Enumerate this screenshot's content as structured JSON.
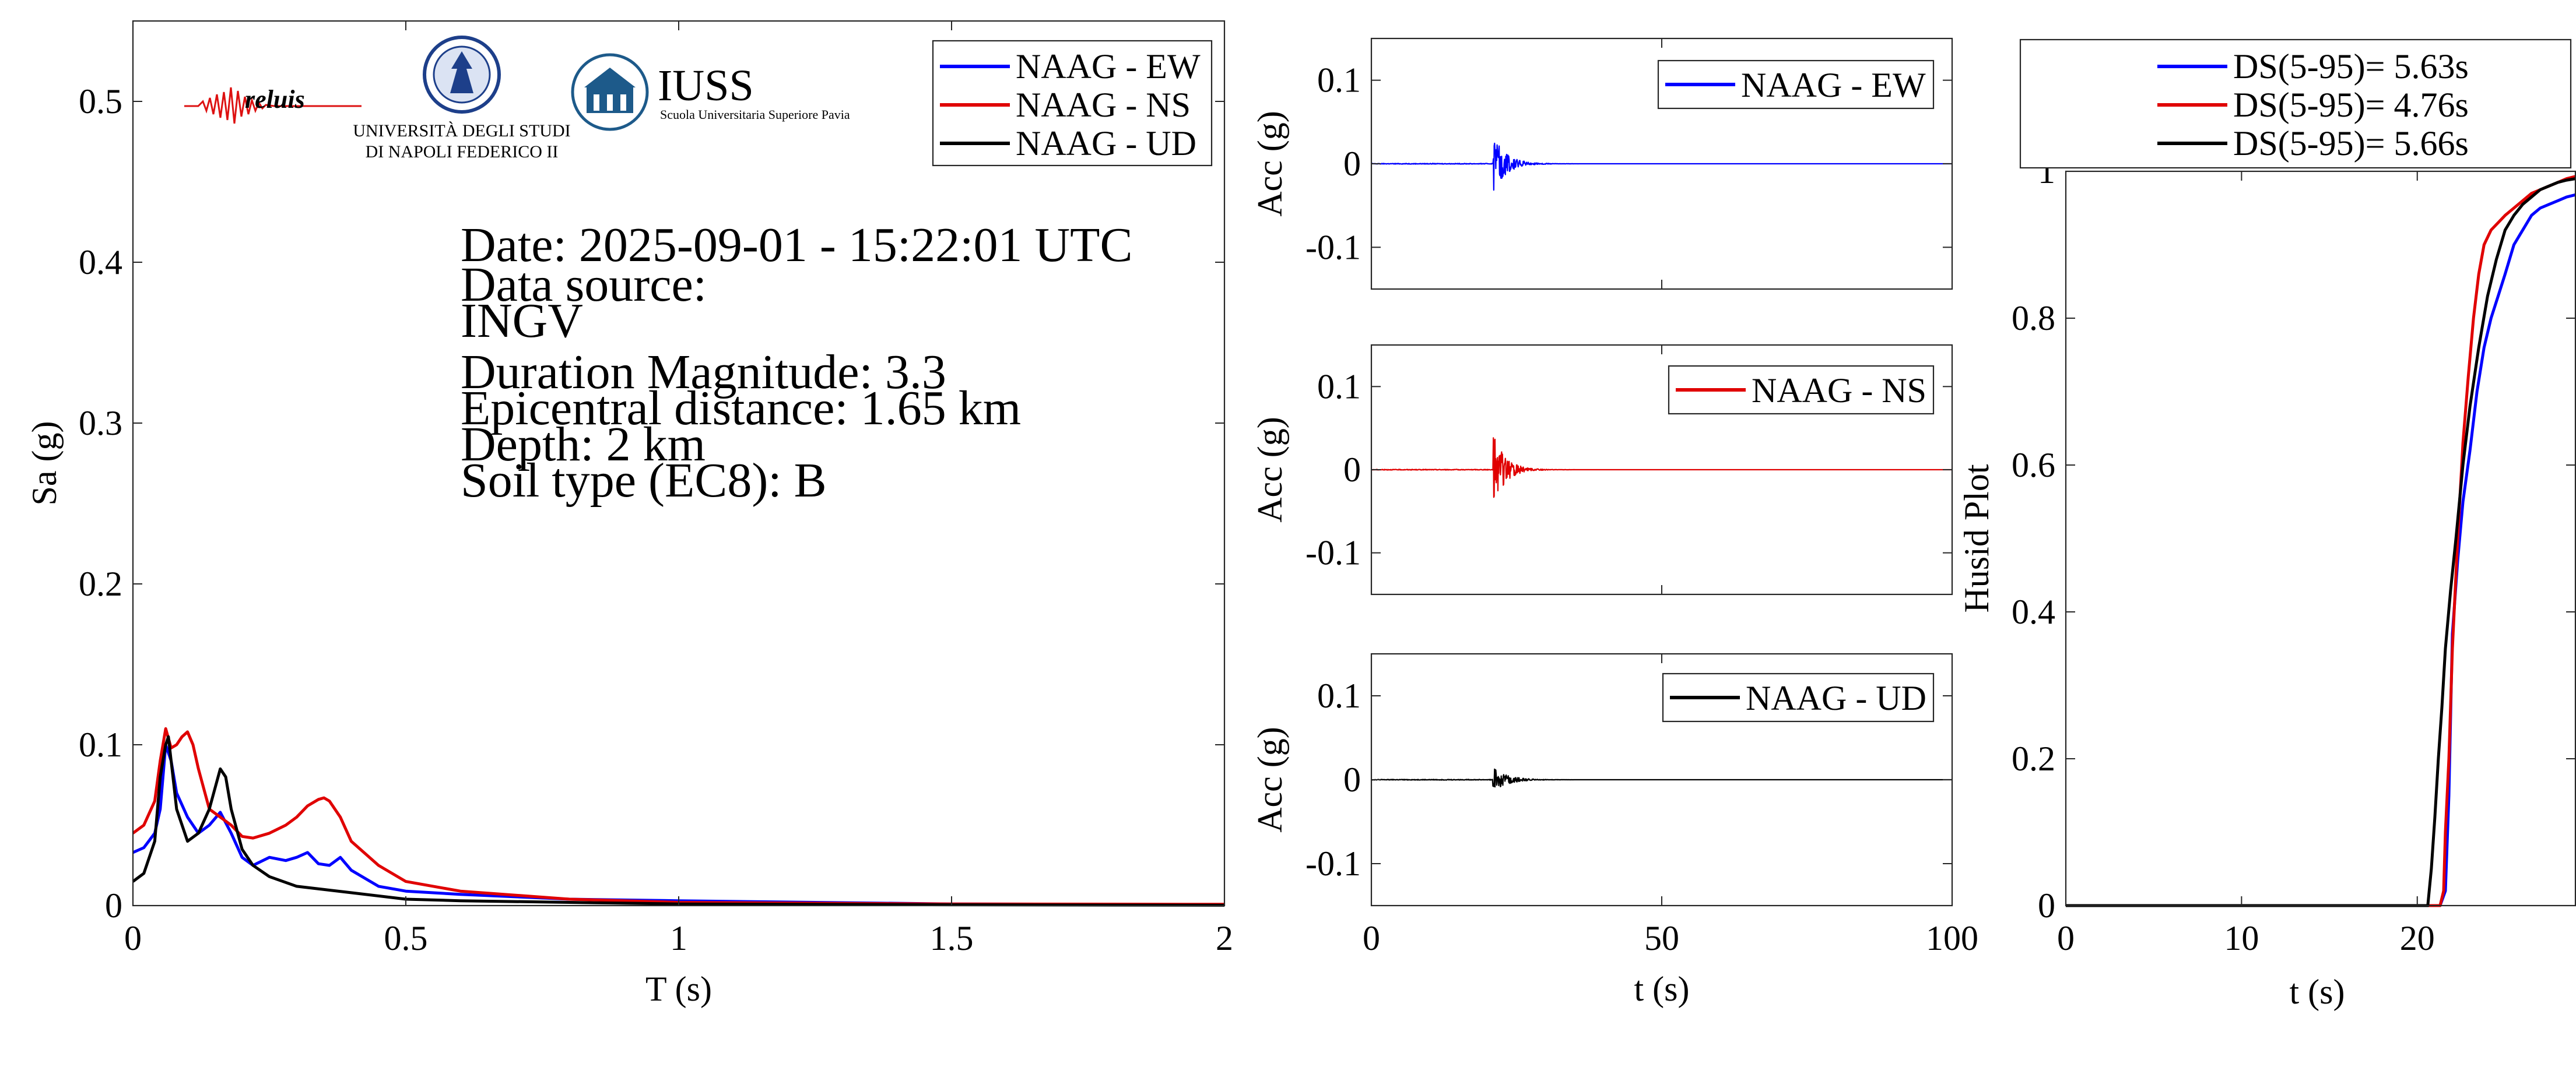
{
  "colors": {
    "EW": "#0000ff",
    "NS": "#e00000",
    "UD": "#000000"
  },
  "logos": [
    {
      "name": "reluis",
      "text": "reluis"
    },
    {
      "name": "unina",
      "lines": [
        "UNIVERSITÀ DEGLI STUDI",
        "DI NAPOLI FEDERICO II"
      ]
    },
    {
      "name": "iuss",
      "title": "IUSS",
      "subtitle": "Scuola Universitaria Superiore Pavia"
    }
  ],
  "info": {
    "date": "Date: 2025-09-01 - 15:22:01 UTC",
    "source_label": "Data source:",
    "source": "INGV",
    "magnitude": "Duration Magnitude: 3.3",
    "distance": "Epicentral distance: 1.65 km",
    "depth": "Depth: 2 km",
    "soil": "Soil type (EC8): B"
  },
  "chart_data": [
    {
      "name": "spectrum",
      "type": "line",
      "xlabel": "T (s)",
      "ylabel": "Sa (g)",
      "xlim": [
        0,
        2
      ],
      "ylim": [
        0,
        0.55
      ],
      "xticks": [
        0,
        0.5,
        1,
        1.5,
        2
      ],
      "xticklabels": [
        "0",
        "0.5",
        "1",
        "1.5",
        "2"
      ],
      "yticks": [
        0,
        0.1,
        0.2,
        0.3,
        0.4,
        0.5
      ],
      "yticklabels": [
        "0",
        "0.1",
        "0.2",
        "0.3",
        "0.4",
        "0.5"
      ],
      "legend_position": "top-right",
      "series": [
        {
          "name": "NAAG - EW",
          "color": "#0000ff",
          "x": [
            0,
            0.02,
            0.04,
            0.05,
            0.06,
            0.07,
            0.08,
            0.1,
            0.12,
            0.14,
            0.16,
            0.18,
            0.2,
            0.22,
            0.25,
            0.28,
            0.3,
            0.32,
            0.34,
            0.36,
            0.38,
            0.4,
            0.45,
            0.5,
            0.6,
            0.8,
            1,
            1.5,
            2
          ],
          "y": [
            0.033,
            0.036,
            0.045,
            0.06,
            0.1,
            0.09,
            0.07,
            0.055,
            0.045,
            0.05,
            0.058,
            0.045,
            0.03,
            0.025,
            0.03,
            0.028,
            0.03,
            0.033,
            0.026,
            0.025,
            0.03,
            0.022,
            0.012,
            0.009,
            0.007,
            0.004,
            0.003,
            0.001,
            0.0006
          ]
        },
        {
          "name": "NAAG - NS",
          "color": "#e00000",
          "x": [
            0,
            0.02,
            0.04,
            0.05,
            0.06,
            0.07,
            0.08,
            0.09,
            0.1,
            0.11,
            0.12,
            0.14,
            0.16,
            0.18,
            0.2,
            0.22,
            0.25,
            0.28,
            0.3,
            0.32,
            0.34,
            0.35,
            0.36,
            0.38,
            0.4,
            0.45,
            0.5,
            0.6,
            0.8,
            1,
            1.5,
            2
          ],
          "y": [
            0.045,
            0.05,
            0.065,
            0.09,
            0.11,
            0.098,
            0.1,
            0.105,
            0.108,
            0.1,
            0.085,
            0.06,
            0.055,
            0.05,
            0.043,
            0.042,
            0.045,
            0.05,
            0.055,
            0.062,
            0.066,
            0.067,
            0.065,
            0.055,
            0.04,
            0.025,
            0.015,
            0.009,
            0.004,
            0.002,
            0.001,
            0.0008
          ]
        },
        {
          "name": "NAAG - UD",
          "color": "#000000",
          "x": [
            0,
            0.02,
            0.04,
            0.05,
            0.06,
            0.065,
            0.07,
            0.08,
            0.1,
            0.12,
            0.14,
            0.16,
            0.17,
            0.18,
            0.2,
            0.22,
            0.25,
            0.3,
            0.35,
            0.4,
            0.5,
            0.6,
            0.8,
            1,
            1.5,
            2
          ],
          "y": [
            0.015,
            0.02,
            0.04,
            0.08,
            0.1,
            0.105,
            0.09,
            0.06,
            0.04,
            0.045,
            0.06,
            0.085,
            0.08,
            0.06,
            0.035,
            0.025,
            0.018,
            0.012,
            0.01,
            0.008,
            0.004,
            0.003,
            0.002,
            0.001,
            0.0005,
            0.0002
          ]
        }
      ]
    },
    {
      "name": "acc-ew",
      "type": "line",
      "xlabel": "",
      "ylabel": "Acc (g)",
      "xlim": [
        0,
        100
      ],
      "ylim": [
        -0.15,
        0.15
      ],
      "yticks": [
        -0.1,
        0,
        0.1
      ],
      "yticklabels": [
        "-0.1",
        "0",
        "0.1"
      ],
      "legend_position": "top-right",
      "series": [
        {
          "name": "NAAG - EW",
          "color": "#0000ff",
          "onset": 21.0,
          "peak": 0.034,
          "decay": 2.2
        }
      ]
    },
    {
      "name": "acc-ns",
      "type": "line",
      "xlabel": "",
      "ylabel": "Acc (g)",
      "xlim": [
        0,
        100
      ],
      "ylim": [
        -0.15,
        0.15
      ],
      "yticks": [
        -0.1,
        0,
        0.1
      ],
      "yticklabels": [
        "-0.1",
        "0",
        "0.1"
      ],
      "legend_position": "top-right",
      "series": [
        {
          "name": "NAAG - NS",
          "color": "#e00000",
          "onset": 21.0,
          "peak": 0.045,
          "decay": 2.0
        }
      ]
    },
    {
      "name": "acc-ud",
      "type": "line",
      "xlabel": "t (s)",
      "ylabel": "Acc (g)",
      "xlim": [
        0,
        100
      ],
      "ylim": [
        -0.15,
        0.15
      ],
      "xticks": [
        0,
        50,
        100
      ],
      "xticklabels": [
        "0",
        "50",
        "100"
      ],
      "yticks": [
        -0.1,
        0,
        0.1
      ],
      "yticklabels": [
        "-0.1",
        "0",
        "0.1"
      ],
      "legend_position": "top-right",
      "series": [
        {
          "name": "NAAG - UD",
          "color": "#000000",
          "onset": 20.8,
          "peak": 0.016,
          "decay": 2.4
        }
      ]
    },
    {
      "name": "husid",
      "type": "line",
      "xlabel": "t (s)",
      "ylabel": "Husid Plot",
      "xlim": [
        0,
        29
      ],
      "ylim": [
        0,
        1
      ],
      "xticks": [
        0,
        10,
        20
      ],
      "xticklabels": [
        "0",
        "10",
        "20"
      ],
      "yticks": [
        0,
        0.2,
        0.4,
        0.6,
        0.8,
        1
      ],
      "yticklabels": [
        "0",
        "0.2",
        "0.4",
        "0.6",
        "0.8",
        "1"
      ],
      "legend_position": "top (outside)",
      "series": [
        {
          "name": "DS(5-95)= 5.63s",
          "color": "#0000ff",
          "x": [
            0,
            21.3,
            21.6,
            21.8,
            22.0,
            22.3,
            22.6,
            23.0,
            23.4,
            23.8,
            24.2,
            24.6,
            25.0,
            25.5,
            26.0,
            26.5,
            27.0,
            27.5,
            28.0,
            28.5,
            29
          ],
          "y": [
            0,
            0,
            0.02,
            0.15,
            0.37,
            0.47,
            0.55,
            0.62,
            0.7,
            0.76,
            0.8,
            0.83,
            0.86,
            0.9,
            0.92,
            0.94,
            0.95,
            0.955,
            0.96,
            0.965,
            0.968
          ]
        },
        {
          "name": "DS(5-95)= 4.76s",
          "color": "#e00000",
          "x": [
            0,
            21.3,
            21.5,
            21.6,
            21.8,
            22.0,
            22.3,
            22.6,
            22.9,
            23.2,
            23.5,
            23.8,
            24.2,
            24.6,
            25.0,
            25.5,
            26.0,
            26.5,
            27.0,
            27.5,
            28.0,
            28.5,
            29
          ],
          "y": [
            0,
            0,
            0.02,
            0.1,
            0.2,
            0.35,
            0.5,
            0.63,
            0.72,
            0.8,
            0.86,
            0.9,
            0.92,
            0.93,
            0.94,
            0.95,
            0.96,
            0.97,
            0.975,
            0.98,
            0.985,
            0.99,
            0.993
          ]
        },
        {
          "name": "DS(5-95)= 5.66s",
          "color": "#000000",
          "x": [
            0,
            20.6,
            20.8,
            21.0,
            21.2,
            21.4,
            21.6,
            21.9,
            22.2,
            22.6,
            23.0,
            23.5,
            24.0,
            24.5,
            25.0,
            25.5,
            26.0,
            26.5,
            27.0,
            27.5,
            28.0,
            28.5,
            29
          ],
          "y": [
            0,
            0,
            0.05,
            0.12,
            0.2,
            0.27,
            0.35,
            0.43,
            0.5,
            0.6,
            0.68,
            0.76,
            0.83,
            0.88,
            0.92,
            0.94,
            0.955,
            0.965,
            0.975,
            0.98,
            0.985,
            0.988,
            0.99
          ]
        }
      ]
    }
  ]
}
